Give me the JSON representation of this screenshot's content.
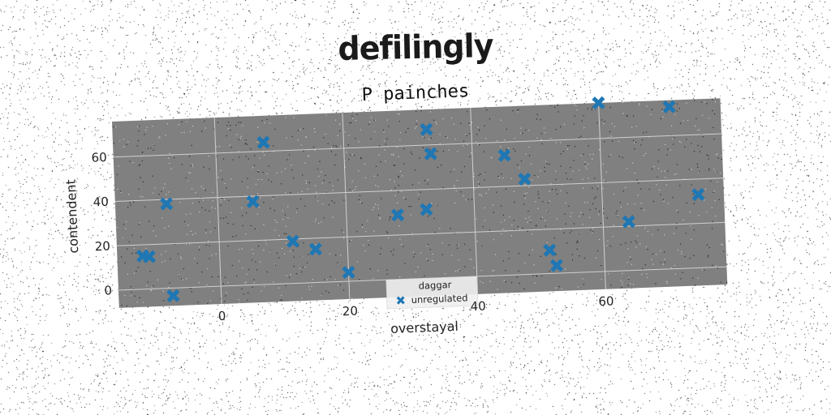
{
  "chart_data": {
    "type": "scatter",
    "suptitle": "defilingly",
    "title": "P painches",
    "xlabel": "overstayal",
    "ylabel": "contendent",
    "xlim": [
      -16,
      79
    ],
    "ylim": [
      -8,
      76
    ],
    "xticks": [
      0,
      20,
      40,
      60
    ],
    "yticks": [
      0,
      20,
      40,
      60
    ],
    "grid": true,
    "legend": {
      "title": "daggar",
      "position": "lower-center"
    },
    "series": [
      {
        "name": "unregulated",
        "color": "#1f77b4",
        "marker": "X",
        "points": [
          [
            -12,
            15
          ],
          [
            -11,
            14.5
          ],
          [
            -8,
            38
          ],
          [
            -7.5,
            -3.5
          ],
          [
            5.5,
            37.5
          ],
          [
            7.5,
            64
          ],
          [
            11.5,
            19
          ],
          [
            15,
            15
          ],
          [
            20,
            4
          ],
          [
            28,
            29
          ],
          [
            32.5,
            31
          ],
          [
            33,
            67
          ],
          [
            33.5,
            56
          ],
          [
            45,
            54
          ],
          [
            48,
            43
          ],
          [
            51.5,
            10.5
          ],
          [
            52.5,
            3.5
          ],
          [
            60,
            76
          ],
          [
            64,
            22
          ],
          [
            71,
            73
          ],
          [
            75,
            33
          ]
        ]
      }
    ]
  }
}
